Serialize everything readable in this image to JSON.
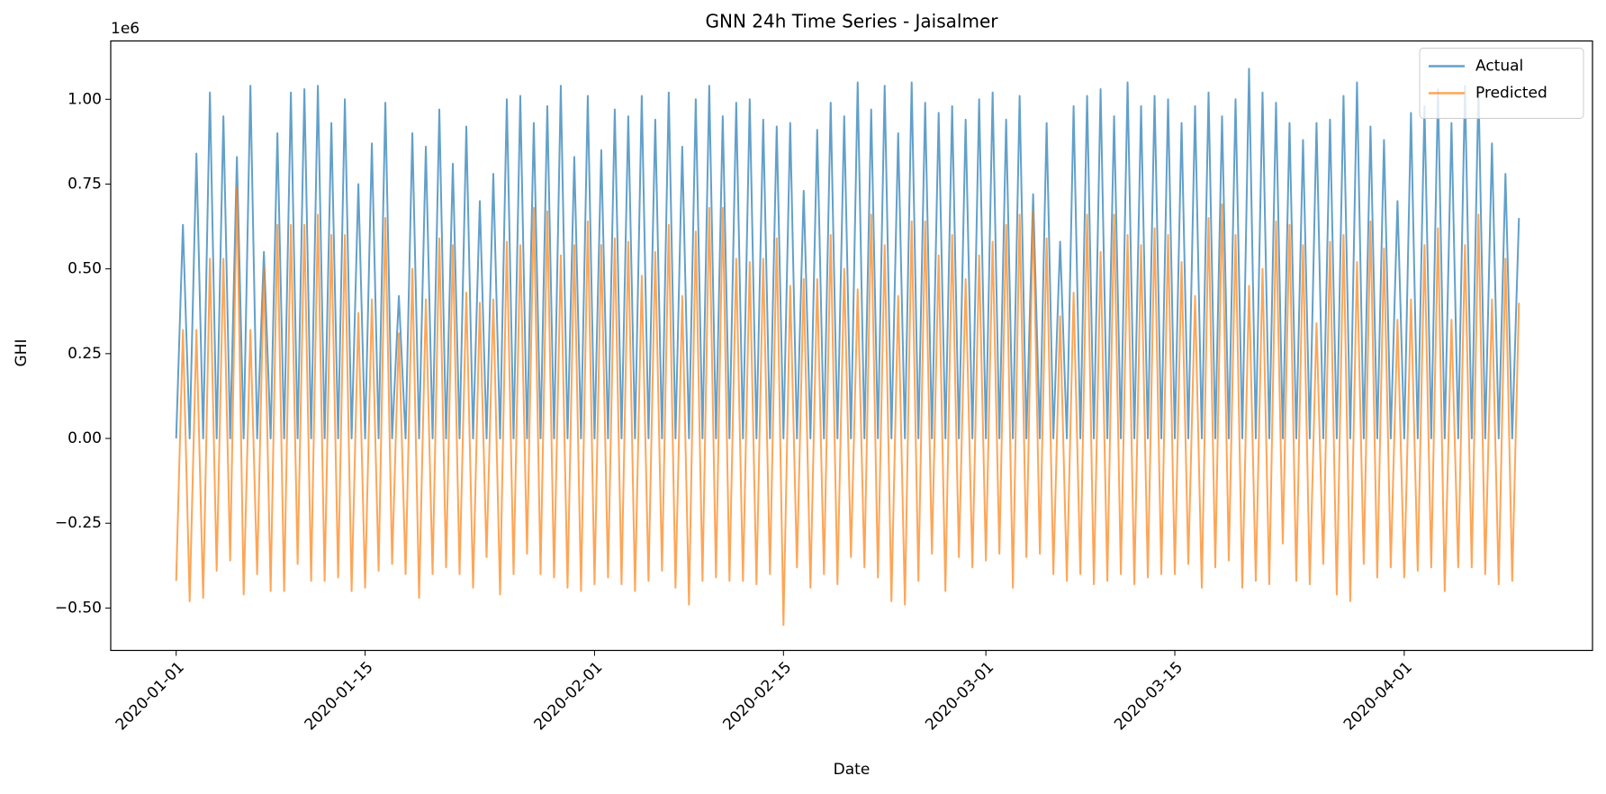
{
  "chart_data": {
    "type": "line",
    "title": "GNN 24h Time Series - Jaisalmer",
    "x_label": "Date",
    "y_label": "GHI",
    "y_offset_label": "1e6",
    "x": [
      0,
      0.5,
      1,
      1.5,
      2,
      2.5,
      3,
      3.5,
      4,
      4.5,
      5,
      5.5,
      6,
      6.5,
      7,
      7.5,
      8,
      8.5,
      9,
      9.5,
      10,
      10.5,
      11,
      11.5,
      12,
      12.5,
      13,
      13.5,
      14,
      14.5,
      15,
      15.5,
      16,
      16.5,
      17,
      17.5,
      18,
      18.5,
      19,
      19.5,
      20,
      20.5,
      21,
      21.5,
      22,
      22.5,
      23,
      23.5,
      24,
      24.5,
      25,
      25.5,
      26,
      26.5,
      27,
      27.5,
      28,
      28.5,
      29,
      29.5,
      30,
      30.5,
      31,
      31.5,
      32,
      32.5,
      33,
      33.5,
      34,
      34.5,
      35,
      35.5,
      36,
      36.5,
      37,
      37.5,
      38,
      38.5,
      39,
      39.5,
      40,
      40.5,
      41,
      41.5,
      42,
      42.5,
      43,
      43.5,
      44,
      44.5,
      45,
      45.5,
      46,
      46.5,
      47,
      47.5,
      48,
      48.5,
      49,
      49.5,
      50,
      50.5,
      51,
      51.5,
      52,
      52.5,
      53,
      53.5,
      54,
      54.5,
      55,
      55.5,
      56,
      56.5,
      57,
      57.5,
      58,
      58.5,
      59,
      59.5,
      60,
      60.5,
      61,
      61.5,
      62,
      62.5,
      63,
      63.5,
      64,
      64.5,
      65,
      65.5,
      66,
      66.5,
      67,
      67.5,
      68,
      68.5,
      69,
      69.5,
      70,
      70.5,
      71,
      71.5,
      72,
      72.5,
      73,
      73.5,
      74,
      74.5,
      75,
      75.5,
      76,
      76.5,
      77,
      77.5,
      78,
      78.5,
      79,
      79.5,
      80,
      80.5,
      81,
      81.5,
      82,
      82.5,
      83,
      83.5,
      84,
      84.5,
      85,
      85.5,
      86,
      86.5,
      87,
      87.5,
      88,
      88.5,
      89,
      89.5,
      90,
      90.5,
      91,
      91.5,
      92,
      92.5,
      93,
      93.5,
      94,
      94.5,
      95,
      95.5,
      96,
      96.5,
      97,
      97.5,
      98,
      98.5,
      99,
      99.5
    ],
    "series": [
      {
        "name": "Actual",
        "color": "#1f77b4",
        "values": [
          0,
          0.63,
          0,
          0.84,
          0,
          1.02,
          0,
          0.95,
          0,
          0.83,
          0,
          1.04,
          0,
          0.55,
          0,
          0.9,
          0,
          1.02,
          0,
          1.03,
          0,
          1.04,
          0,
          0.93,
          0,
          1,
          0,
          0.75,
          0,
          0.87,
          0,
          0.99,
          0,
          0.42,
          0,
          0.9,
          0,
          0.86,
          0,
          0.97,
          0,
          0.81,
          0,
          0.92,
          0,
          0.7,
          0,
          0.78,
          0,
          1,
          0,
          1.01,
          0,
          0.93,
          0,
          0.98,
          0,
          1.04,
          0,
          0.83,
          0,
          1.01,
          0,
          0.85,
          0,
          0.97,
          0,
          0.95,
          0,
          1.01,
          0,
          0.94,
          0,
          1.02,
          0,
          0.86,
          0,
          1,
          0,
          1.04,
          0,
          0.95,
          0,
          0.99,
          0,
          1,
          0,
          0.94,
          0,
          0.92,
          0,
          0.93,
          0,
          0.73,
          0,
          0.91,
          0,
          0.99,
          0,
          0.95,
          0,
          1.05,
          0,
          0.97,
          0,
          1.04,
          0,
          0.9,
          0,
          1.05,
          0,
          0.99,
          0,
          0.96,
          0,
          0.98,
          0,
          0.94,
          0,
          1,
          0,
          1.02,
          0,
          0.94,
          0,
          1.01,
          0,
          0.72,
          0,
          0.93,
          0,
          0.58,
          0,
          0.98,
          0,
          1.01,
          0,
          1.03,
          0,
          0.95,
          0,
          1.05,
          0,
          0.98,
          0,
          1.01,
          0,
          1,
          0,
          0.93,
          0,
          0.98,
          0,
          1.02,
          0,
          0.95,
          0,
          1,
          0,
          1.09,
          0,
          1.02,
          0,
          0.99,
          0,
          0.93,
          0,
          0.88,
          0,
          0.93,
          0,
          0.94,
          0,
          1.01,
          0,
          1.05,
          0,
          0.92,
          0,
          0.88,
          0,
          0.7,
          0,
          0.96,
          0,
          0.98,
          0,
          1.03,
          0,
          0.93,
          0,
          1.04,
          0,
          1.04,
          0,
          0.87,
          0,
          0.78,
          0,
          0.65
        ]
      },
      {
        "name": "Predicted",
        "color": "#ff7f0e",
        "values": [
          -0.42,
          0.32,
          -0.48,
          0.32,
          -0.47,
          0.53,
          -0.39,
          0.53,
          -0.36,
          0.74,
          -0.46,
          0.32,
          -0.4,
          0.5,
          -0.45,
          0.63,
          -0.45,
          0.63,
          -0.37,
          0.63,
          -0.42,
          0.66,
          -0.42,
          0.6,
          -0.41,
          0.6,
          -0.45,
          0.37,
          -0.44,
          0.41,
          -0.39,
          0.65,
          -0.37,
          0.31,
          -0.4,
          0.5,
          -0.47,
          0.41,
          -0.4,
          0.59,
          -0.38,
          0.57,
          -0.4,
          0.43,
          -0.44,
          0.4,
          -0.35,
          0.41,
          -0.46,
          0.58,
          -0.4,
          0.57,
          -0.34,
          0.68,
          -0.4,
          0.67,
          -0.41,
          0.54,
          -0.44,
          0.57,
          -0.45,
          0.64,
          -0.43,
          0.57,
          -0.41,
          0.59,
          -0.43,
          0.58,
          -0.45,
          0.48,
          -0.42,
          0.55,
          -0.39,
          0.63,
          -0.44,
          0.42,
          -0.49,
          0.61,
          -0.42,
          0.68,
          -0.41,
          0.68,
          -0.42,
          0.53,
          -0.42,
          0.52,
          -0.43,
          0.53,
          -0.4,
          0.59,
          -0.55,
          0.45,
          -0.38,
          0.47,
          -0.44,
          0.47,
          -0.4,
          0.6,
          -0.43,
          0.5,
          -0.35,
          0.44,
          -0.38,
          0.66,
          -0.41,
          0.57,
          -0.48,
          0.42,
          -0.49,
          0.64,
          -0.42,
          0.64,
          -0.34,
          0.54,
          -0.45,
          0.6,
          -0.35,
          0.47,
          -0.38,
          0.54,
          -0.36,
          0.58,
          -0.34,
          0.63,
          -0.44,
          0.66,
          -0.35,
          0.67,
          -0.34,
          0.59,
          -0.4,
          0.36,
          -0.42,
          0.43,
          -0.4,
          0.66,
          -0.43,
          0.55,
          -0.42,
          0.66,
          -0.4,
          0.6,
          -0.43,
          0.57,
          -0.41,
          0.62,
          -0.4,
          0.6,
          -0.4,
          0.52,
          -0.37,
          0.42,
          -0.44,
          0.65,
          -0.38,
          0.69,
          -0.36,
          0.6,
          -0.44,
          0.45,
          -0.42,
          0.5,
          -0.43,
          0.64,
          -0.31,
          0.63,
          -0.42,
          0.57,
          -0.43,
          0.34,
          -0.37,
          0.58,
          -0.46,
          0.6,
          -0.48,
          0.52,
          -0.37,
          0.64,
          -0.41,
          0.56,
          -0.38,
          0.35,
          -0.41,
          0.41,
          -0.39,
          0.57,
          -0.38,
          0.62,
          -0.45,
          0.35,
          -0.38,
          0.57,
          -0.38,
          0.66,
          -0.4,
          0.41,
          -0.43,
          0.53,
          -0.42,
          0.4
        ]
      }
    ],
    "xlim": [
      -4.85,
      104.95
    ],
    "ylim": [
      -0.625,
      1.172
    ],
    "xticks": [
      {
        "value": 0,
        "label": "2020-01-01"
      },
      {
        "value": 14,
        "label": "2020-01-15"
      },
      {
        "value": 31,
        "label": "2020-02-01"
      },
      {
        "value": 45,
        "label": "2020-02-15"
      },
      {
        "value": 60,
        "label": "2020-03-01"
      },
      {
        "value": 74,
        "label": "2020-03-15"
      },
      {
        "value": 91,
        "label": "2020-04-01"
      }
    ],
    "yticks": [
      {
        "value": -0.5,
        "label": "−0.50"
      },
      {
        "value": -0.25,
        "label": "−0.25"
      },
      {
        "value": 0,
        "label": "0.00"
      },
      {
        "value": 0.25,
        "label": "0.25"
      },
      {
        "value": 0.5,
        "label": "0.50"
      },
      {
        "value": 0.75,
        "label": "0.75"
      },
      {
        "value": 1,
        "label": "1.00"
      }
    ],
    "grid": false,
    "legend": "upper right",
    "opacity": 0.7
  }
}
